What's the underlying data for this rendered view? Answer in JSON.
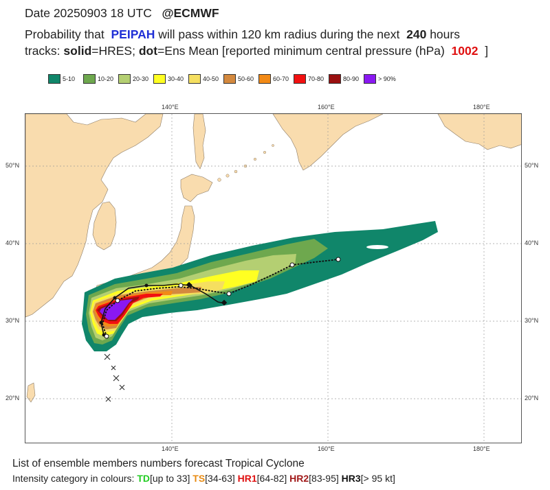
{
  "header": {
    "date_line": "Date 20250903 18 UTC",
    "source": "@ECMWF",
    "prob_prefix": "Probability that",
    "storm_name": "PEIPAH",
    "prob_mid": "will pass within 120 km radius during the next",
    "hours": "240",
    "hours_unit": "hours",
    "tracks_label": "tracks:",
    "solid_label": "solid",
    "solid_desc": "=HRES;",
    "dot_label": "dot",
    "dot_desc": "=Ens Mean [reported minimum central pressure (hPa)",
    "pressure": "1002",
    "close_bracket": "]"
  },
  "legend": [
    {
      "label": "5-10",
      "color": "#10866a"
    },
    {
      "label": "10-20",
      "color": "#6ea84e"
    },
    {
      "label": "20-30",
      "color": "#b4cf72"
    },
    {
      "label": "30-40",
      "color": "#ffff22"
    },
    {
      "label": "40-50",
      "color": "#f5df60"
    },
    {
      "label": "50-60",
      "color": "#d4893e"
    },
    {
      "label": "60-70",
      "color": "#f28a16"
    },
    {
      "label": "70-80",
      "color": "#f21010"
    },
    {
      "label": "80-90",
      "color": "#9a1010"
    },
    {
      "label": "> 90%",
      "color": "#8a18f2"
    }
  ],
  "map": {
    "lon_labels": [
      "140°E",
      "160°E",
      "180°E"
    ],
    "lat_labels": [
      "50°N",
      "40°N",
      "30°N",
      "20°N"
    ],
    "colors": {
      "land": "#f9dcae",
      "sea": "#ffffff",
      "grid": "#9a9a9a",
      "coast": "#8a7a66"
    }
  },
  "footer": {
    "line1": "List of ensemble members numbers forecast Tropical Cyclone",
    "line2_prefix": "Intensity category in colours:",
    "td_label": "TD",
    "td_range": "[up to 33]",
    "ts_label": "TS",
    "ts_range": "[34-63]",
    "hr1_label": "HR1",
    "hr1_range": "[64-82]",
    "hr2_label": "HR2",
    "hr2_range": "[83-95]",
    "hr3_label": "HR3",
    "hr3_range": "[> 95 kt]"
  }
}
